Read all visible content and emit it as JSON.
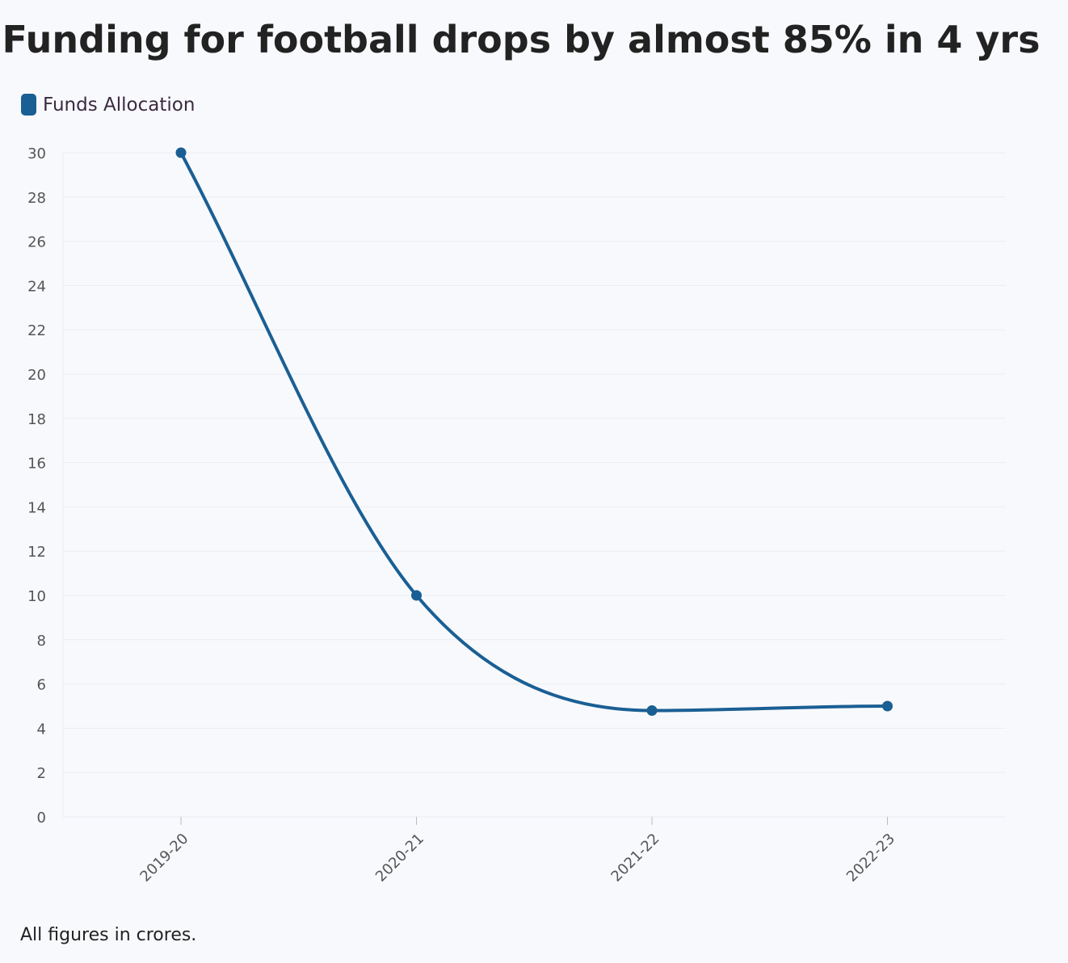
{
  "chart_data": {
    "type": "line",
    "title": "Funding for football drops by almost 85% in 4 yrs",
    "categories": [
      "2019-20",
      "2020-21",
      "2021-22",
      "2022-23"
    ],
    "series": [
      {
        "name": "Funds Allocation",
        "values": [
          30,
          10,
          4.8,
          5
        ],
        "color": "#1a5f94"
      }
    ],
    "ylim": [
      0,
      30
    ],
    "yticks": [
      0,
      2,
      4,
      6,
      8,
      10,
      12,
      14,
      16,
      18,
      20,
      22,
      24,
      26,
      28,
      30
    ],
    "xlabel": "",
    "ylabel": "",
    "grid": true,
    "legend_position": "top-left",
    "footnote": "All figures in crores."
  },
  "colors": {
    "background": "#f8f9fc",
    "grid": "#ebedf3",
    "line": "#1a5f94"
  }
}
